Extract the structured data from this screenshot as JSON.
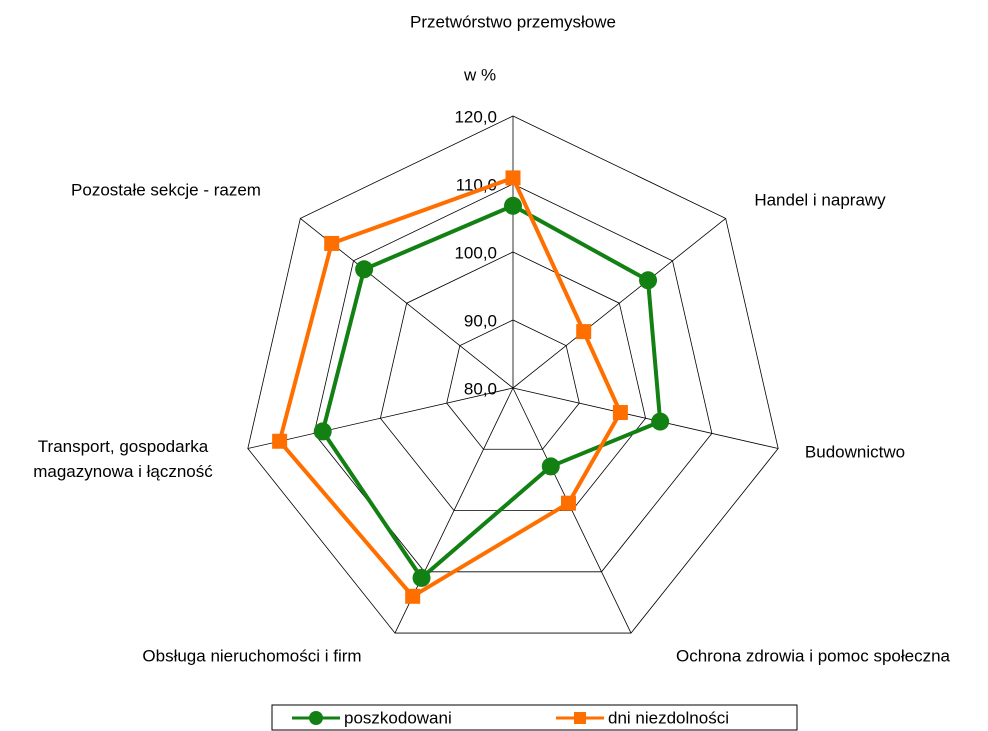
{
  "chart_data": {
    "type": "radar",
    "unit_label": "w %",
    "categories": [
      "Przetwórstwo przemysłowe",
      "Handel i naprawy",
      "Budownictwo",
      "Ochrona zdrowia i pomoc społeczna",
      "Obsługa nieruchomości i firm",
      "Transport, gospodarka magazynowa i łączność",
      "Pozostałe sekcje - razem"
    ],
    "series": [
      {
        "name": "poszkodowani",
        "color": "#138013",
        "marker": "circle",
        "values": [
          106.8,
          105.4,
          102.2,
          92.8,
          111.0,
          108.7,
          108.0
        ]
      },
      {
        "name": "dni niezdolności",
        "color": "#ff6f00",
        "marker": "square",
        "values": [
          110.9,
          93.3,
          96.2,
          98.8,
          114.0,
          115.2,
          114.1
        ]
      }
    ],
    "ylim": [
      80,
      120
    ],
    "yticks": [
      {
        "value": 80,
        "label": "80,0"
      },
      {
        "value": 90,
        "label": "90,0"
      },
      {
        "value": 100,
        "label": "100,0"
      },
      {
        "value": 110,
        "label": "110,0"
      },
      {
        "value": 120,
        "label": "120,0"
      }
    ],
    "grid": true,
    "legend": "bottom"
  }
}
